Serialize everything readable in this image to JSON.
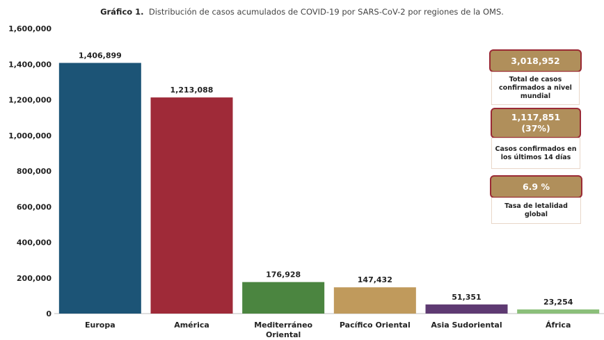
{
  "title": {
    "prefix": "Gráfico 1.",
    "text": "Distribución de casos acumulados de COVID-19 por SARS-CoV-2 por regiones de la OMS."
  },
  "chart_data": {
    "type": "bar",
    "categories": [
      "Europa",
      "América",
      "Mediterráneo Oriental",
      "Pacífico Oriental",
      "Asia Sudoriental",
      "África"
    ],
    "category_lines": [
      [
        "Europa"
      ],
      [
        "América"
      ],
      [
        "Mediterráneo",
        "Oriental"
      ],
      [
        "Pacífico Oriental"
      ],
      [
        "Asia Sudoriental"
      ],
      [
        "África"
      ]
    ],
    "values": [
      1406899,
      1213088,
      176928,
      147432,
      51351,
      23254
    ],
    "value_labels": [
      "1,406,899",
      "1,213,088",
      "176,928",
      "147,432",
      "51,351",
      "23,254"
    ],
    "colors": [
      "#1c5476",
      "#9f2a38",
      "#4b8540",
      "#c09a5c",
      "#5e3a72",
      "#8bbf7a"
    ],
    "ylim": [
      0,
      1600000
    ],
    "yticks": [
      0,
      200000,
      400000,
      600000,
      800000,
      1000000,
      1200000,
      1400000,
      1600000
    ],
    "ytick_labels": [
      "0",
      "200,000",
      "400,000",
      "600,000",
      "800,000",
      "1,000,000",
      "1,200,000",
      "1,400,000",
      "1,600,000"
    ],
    "grid": false,
    "xlabel": "",
    "ylabel": ""
  },
  "kpis": [
    {
      "value": "3,018,952",
      "caption": "Total de casos confirmados a nivel mundial"
    },
    {
      "value": "1,117,851\n(37%)",
      "caption": "Casos confirmados en los últimos 14 días"
    },
    {
      "value": "6.9 %",
      "caption": "Tasa de letalidad global"
    }
  ],
  "colors": {
    "kpi_fill": "#b08f5b",
    "kpi_border": "#9a2a35"
  }
}
